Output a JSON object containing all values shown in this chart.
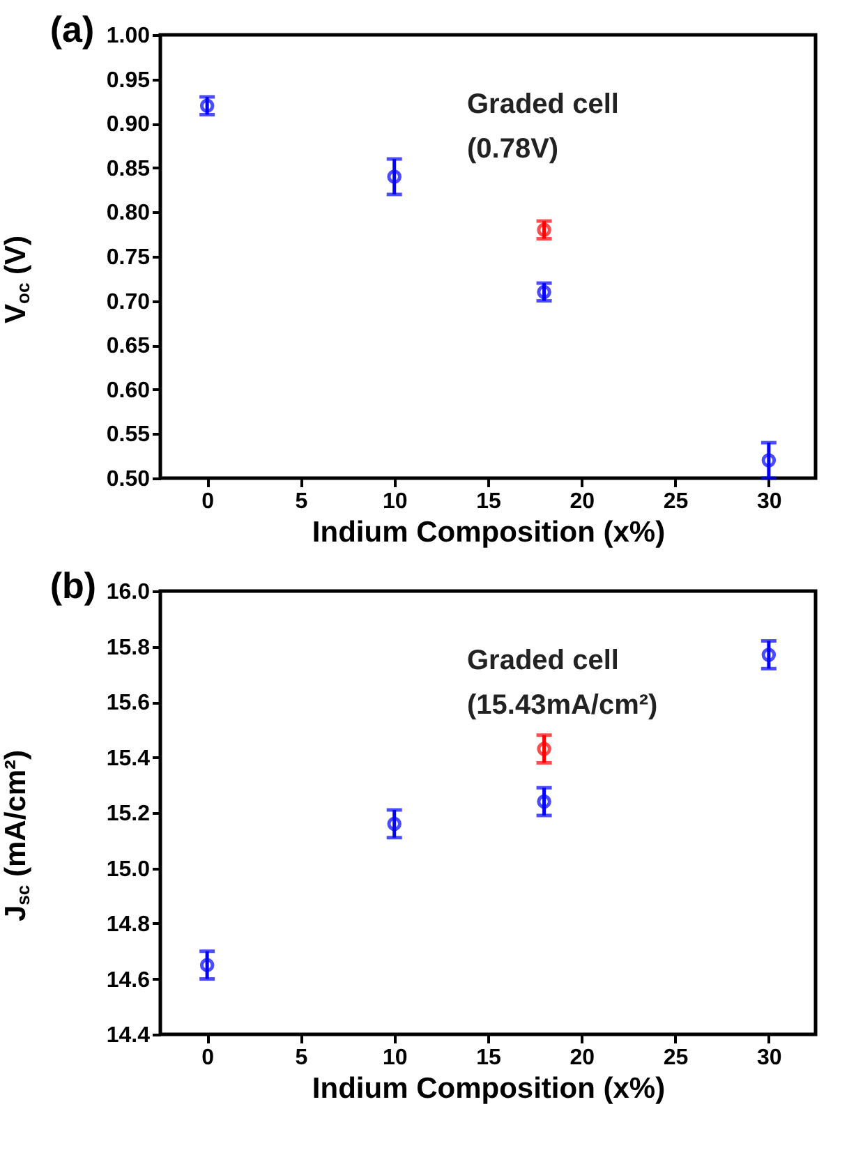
{
  "chart_data": [
    {
      "type": "scatter",
      "title": "(a)",
      "xlabel": "Indium Composition (x%)",
      "ylabel": "V$_{oc}$ (V)",
      "marker": "circle",
      "xlim": [
        -2.5,
        32.5
      ],
      "xticks": [
        0,
        5,
        10,
        15,
        20,
        25,
        30
      ],
      "ylim": [
        0.5,
        1.0
      ],
      "yticks": [
        {
          "value": 0.5,
          "label": "0.50"
        },
        {
          "value": 0.55,
          "label": "0.55"
        },
        {
          "value": 0.6,
          "label": "0.60"
        },
        {
          "value": 0.65,
          "label": "0.65"
        },
        {
          "value": 0.7,
          "label": "0.70"
        },
        {
          "value": 0.75,
          "label": "0.75"
        },
        {
          "value": 0.8,
          "label": "0.80"
        },
        {
          "value": 0.85,
          "label": "0.85"
        },
        {
          "value": 0.9,
          "label": "0.90"
        },
        {
          "value": 0.95,
          "label": "0.95"
        },
        {
          "value": 1.0,
          "label": "1.00"
        }
      ],
      "annotations": [
        "Graded cell",
        "(0.78V)"
      ],
      "series": [
        {
          "color": "#0000ff",
          "x": [
            0,
            10,
            18,
            30
          ],
          "values": [
            0.92,
            0.84,
            0.71,
            0.52
          ],
          "errors": [
            0.01,
            0.02,
            0.01,
            0.02
          ]
        },
        {
          "color": "#ff0000",
          "x": [
            18
          ],
          "values": [
            0.78
          ],
          "errors": [
            0.01
          ]
        }
      ]
    },
    {
      "type": "scatter",
      "title": "(b)",
      "xlabel": "Indium Composition (x%)",
      "ylabel": "J$_{sc}$ (mA/cm²)",
      "marker": "circle",
      "xlim": [
        -2.5,
        32.5
      ],
      "xticks": [
        0,
        5,
        10,
        15,
        20,
        25,
        30
      ],
      "ylim": [
        14.4,
        16.0
      ],
      "yticks": [
        14.4,
        14.6,
        14.8,
        {
          "value": 15.0,
          "label": "15.0"
        },
        15.2,
        15.4,
        15.6,
        15.8,
        {
          "value": 16.0,
          "label": "16.0"
        }
      ],
      "annotations": [
        "Graded cell",
        "(15.43mA/cm²)"
      ],
      "series": [
        {
          "color": "#0000ff",
          "x": [
            0,
            10,
            18,
            30
          ],
          "values": [
            14.65,
            15.16,
            15.24,
            15.77
          ],
          "errors": [
            0.05,
            0.05,
            0.05,
            0.05
          ]
        },
        {
          "color": "#ff0000",
          "x": [
            18
          ],
          "values": [
            15.43
          ],
          "errors": [
            0.05
          ]
        }
      ]
    }
  ]
}
